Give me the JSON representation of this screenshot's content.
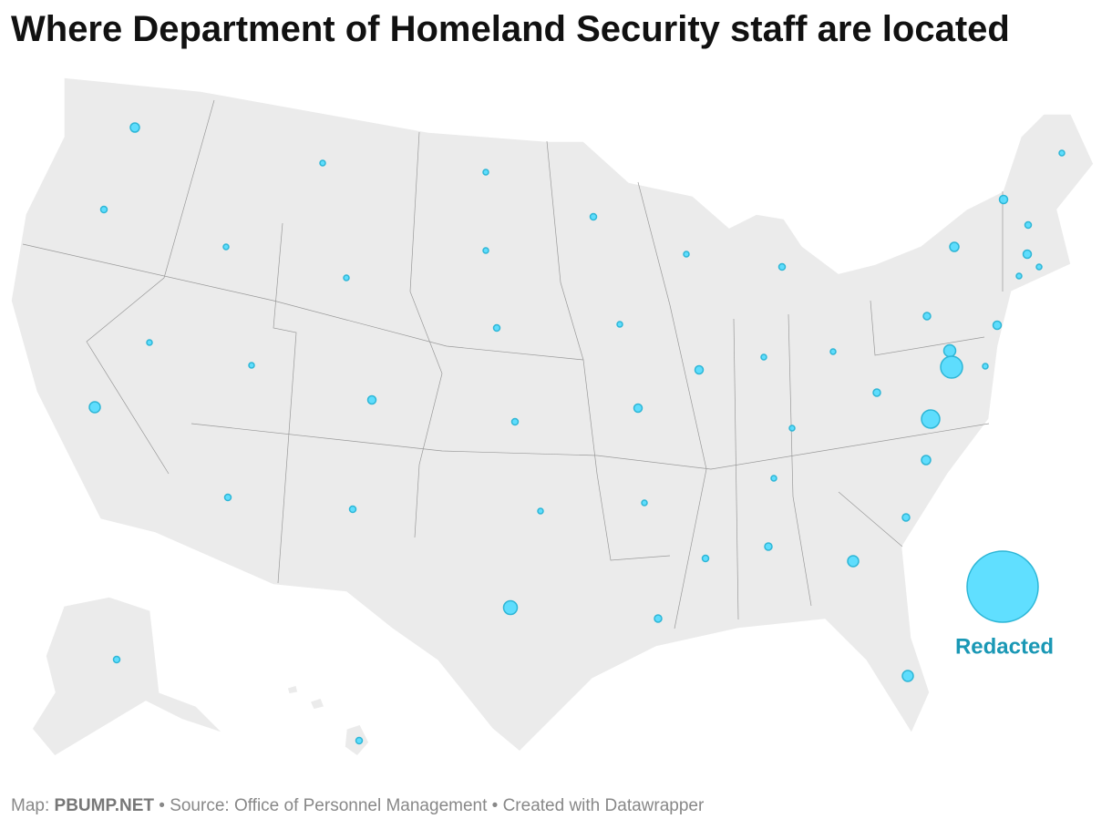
{
  "title": "Where Department of Homeland Security staff are located",
  "annotation": "Redacted",
  "footer": {
    "prefix": "Map:",
    "brand": "PBUMP.NET",
    "source": "• Source: Office of Personnel Management",
    "credit": "• Created with Datawrapper"
  }
}
